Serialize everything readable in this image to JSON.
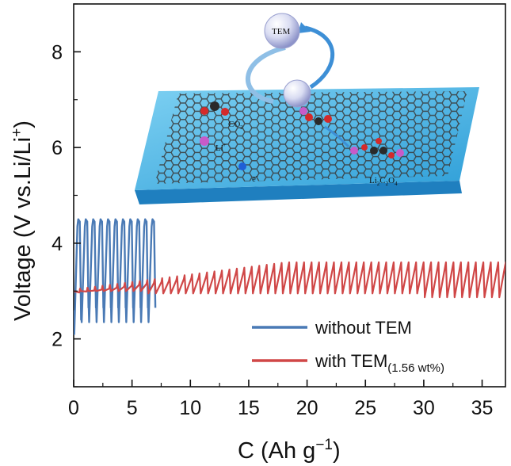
{
  "chart_data": {
    "type": "line",
    "xlabel": "C (Ah g",
    "xlabel_sup": "−1",
    "xlabel_close": ")",
    "ylabel": "Voltage (V vs.Li/Li",
    "ylabel_sup": "+",
    "ylabel_close": ")",
    "xlim": [
      0,
      37
    ],
    "ylim": [
      1,
      9
    ],
    "xticks": [
      "0",
      "5",
      "10",
      "15",
      "20",
      "25",
      "30",
      "35"
    ],
    "xtick_values": [
      0,
      5,
      10,
      15,
      20,
      25,
      30,
      35
    ],
    "yticks": [
      "2",
      "4",
      "6",
      "8"
    ],
    "ytick_values": [
      2,
      4,
      6,
      8
    ],
    "legend_position": "lower-right",
    "series": [
      {
        "name": "without TEM",
        "name_sub": "",
        "color": "#4a7ab5",
        "x_range": [
          0,
          7
        ],
        "cycle_count": 11,
        "charge_voltage_max": 4.5,
        "discharge_voltage_first": 2.1,
        "discharge_voltage_min": 2.35
      },
      {
        "name": "with TEM",
        "name_sub": "(1.56 wt%)",
        "color": "#d04747",
        "x_range": [
          0,
          37
        ],
        "charge_voltage_start": 3.05,
        "charge_voltage_end": 3.6,
        "discharge_voltage": 2.95
      }
    ]
  },
  "inset": {
    "description_labels": {
      "tem": "TEM",
      "co2": "CO",
      "co2_sub": "2",
      "li": "Li",
      "li_sup": "+",
      "e": "e",
      "e_sup": "-",
      "product": "Li",
      "product_sub1": "2",
      "product_c": "C",
      "product_sub2": "2",
      "product_o": "O",
      "product_sub3": "4"
    },
    "colors": {
      "slab_top": "#4fb8e6",
      "slab_side": "#1f7fbf",
      "graphene": "#3a3a3a",
      "arrow": "#3d8fd6",
      "li_atom": "#c85bc8",
      "electron": "#1f5fd6",
      "oxygen": "#d42a2a",
      "carbon": "#2a2a2a"
    }
  }
}
